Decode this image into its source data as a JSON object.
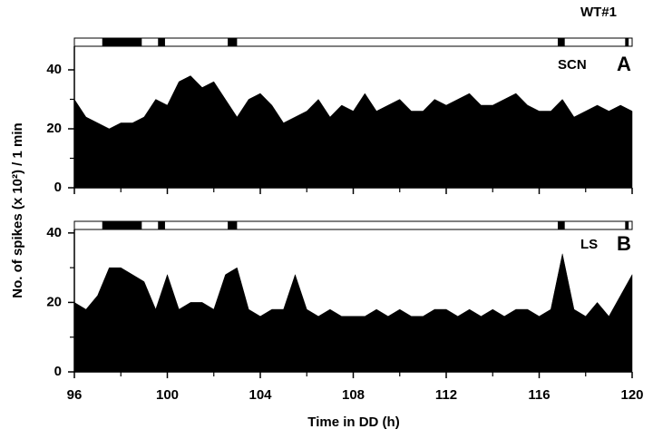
{
  "figure": {
    "label": "WT#1",
    "ylabel": "No. of spikes (x 10²) / 1 min",
    "xlabel": "Time in DD (h)"
  },
  "chart_data": [
    {
      "type": "area",
      "region": "SCN",
      "panel": "A",
      "color": "#000000",
      "x": [
        96,
        96.5,
        97,
        97.5,
        98,
        98.5,
        99,
        99.5,
        100,
        100.5,
        101,
        101.5,
        102,
        102.5,
        103,
        103.5,
        104,
        104.5,
        105,
        105.5,
        106,
        106.5,
        107,
        107.5,
        108,
        108.5,
        109,
        109.5,
        110,
        110.5,
        111,
        111.5,
        112,
        112.5,
        113,
        113.5,
        114,
        114.5,
        115,
        115.5,
        116,
        116.5,
        117,
        117.5,
        118,
        118.5,
        119,
        119.5,
        120
      ],
      "values": [
        30,
        24,
        22,
        20,
        22,
        22,
        24,
        30,
        28,
        36,
        38,
        34,
        36,
        30,
        24,
        30,
        32,
        28,
        22,
        24,
        26,
        30,
        24,
        28,
        26,
        32,
        26,
        28,
        30,
        26,
        26,
        30,
        28,
        30,
        32,
        28,
        28,
        30,
        32,
        28,
        26,
        26,
        30,
        24,
        26,
        28,
        26,
        28,
        26
      ],
      "activity_bars": [
        [
          97.2,
          98.9
        ],
        [
          99.6,
          99.9
        ],
        [
          102.6,
          103.0
        ],
        [
          116.8,
          117.1
        ],
        [
          119.7,
          119.85
        ]
      ],
      "xlim": [
        96,
        120
      ],
      "xticks": [
        96,
        100,
        104,
        108,
        112,
        116,
        120
      ],
      "xminor": [
        98,
        102,
        106,
        110,
        114,
        118
      ],
      "show_xtick_labels": false,
      "ylim": [
        0,
        48
      ],
      "yticks": [
        0,
        20,
        40
      ],
      "yminor": [
        10,
        30
      ]
    },
    {
      "type": "area",
      "region": "LS",
      "panel": "B",
      "color": "#000000",
      "x": [
        96,
        96.5,
        97,
        97.5,
        98,
        98.5,
        99,
        99.5,
        100,
        100.5,
        101,
        101.5,
        102,
        102.5,
        103,
        103.5,
        104,
        104.5,
        105,
        105.5,
        106,
        106.5,
        107,
        107.5,
        108,
        108.5,
        109,
        109.5,
        110,
        110.5,
        111,
        111.5,
        112,
        112.5,
        113,
        113.5,
        114,
        114.5,
        115,
        115.5,
        116,
        116.5,
        117,
        117.5,
        118,
        118.5,
        119,
        119.5,
        120
      ],
      "values": [
        20,
        18,
        22,
        30,
        30,
        28,
        26,
        18,
        28,
        18,
        20,
        20,
        18,
        28,
        30,
        18,
        16,
        18,
        18,
        28,
        18,
        16,
        18,
        16,
        16,
        16,
        18,
        16,
        18,
        16,
        16,
        18,
        18,
        16,
        18,
        16,
        18,
        16,
        18,
        18,
        16,
        18,
        34,
        18,
        16,
        20,
        16,
        22,
        28
      ],
      "activity_bars": [
        [
          97.2,
          98.9
        ],
        [
          99.6,
          99.9
        ],
        [
          102.6,
          103.0
        ],
        [
          116.8,
          117.1
        ],
        [
          119.7,
          119.85
        ]
      ],
      "xlim": [
        96,
        120
      ],
      "xticks": [
        96,
        100,
        104,
        108,
        112,
        116,
        120
      ],
      "xminor": [
        98,
        102,
        106,
        110,
        114,
        118
      ],
      "show_xtick_labels": true,
      "ylim": [
        0,
        41
      ],
      "yticks": [
        0,
        20,
        40
      ],
      "yminor": [
        10,
        30
      ]
    }
  ]
}
